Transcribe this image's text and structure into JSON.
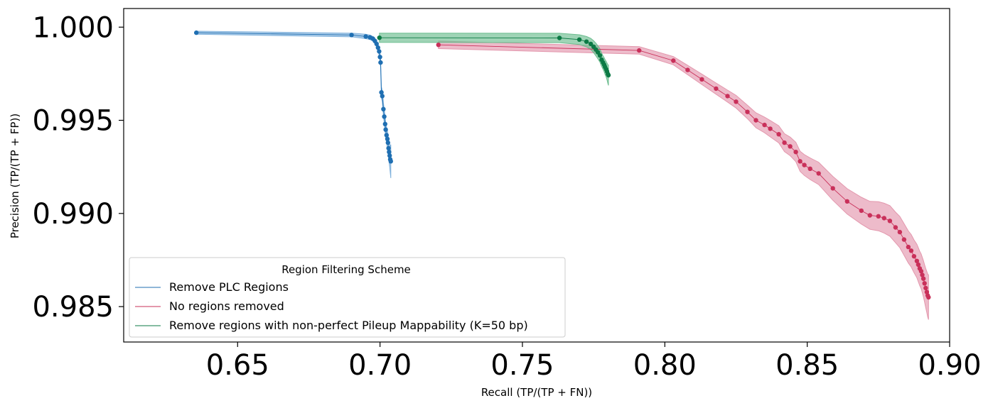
{
  "chart_data": {
    "type": "line",
    "title": "",
    "xlabel": "Recall (TP/(TP + FN))",
    "ylabel": "Precision (TP/(TP + FP))",
    "xlim": [
      0.61,
      0.9
    ],
    "ylim": [
      0.9831,
      1.001
    ],
    "xticks": [
      0.65,
      0.7,
      0.75,
      0.8,
      0.85,
      0.9
    ],
    "xtick_labels": [
      "0.65",
      "0.70",
      "0.75",
      "0.80",
      "0.85",
      "0.90"
    ],
    "yticks": [
      0.985,
      0.99,
      0.995,
      1.0
    ],
    "ytick_labels": [
      "0.985",
      "0.990",
      "0.995",
      "1.000"
    ],
    "grid": false,
    "legend": {
      "title": "Region Filtering Scheme",
      "placement": "lower-left"
    },
    "series": [
      {
        "name": "Remove PLC Regions",
        "color": "#1f6fb2",
        "band_color": "#7fb1dc",
        "points": [
          [
            0.6355,
            0.9997
          ],
          [
            0.69,
            0.99958
          ],
          [
            0.695,
            0.9995
          ],
          [
            0.6965,
            0.99945
          ],
          [
            0.6975,
            0.99938
          ],
          [
            0.6982,
            0.99926
          ],
          [
            0.6988,
            0.9991
          ],
          [
            0.6993,
            0.9989
          ],
          [
            0.6997,
            0.9987
          ],
          [
            0.7,
            0.9984
          ],
          [
            0.7002,
            0.9981
          ],
          [
            0.7005,
            0.9965
          ],
          [
            0.7008,
            0.9963
          ],
          [
            0.7012,
            0.9956
          ],
          [
            0.7015,
            0.9952
          ],
          [
            0.7018,
            0.9948
          ],
          [
            0.702,
            0.9945
          ],
          [
            0.7023,
            0.9942
          ],
          [
            0.7026,
            0.994
          ],
          [
            0.7028,
            0.9938
          ],
          [
            0.703,
            0.9935
          ],
          [
            0.7032,
            0.9933
          ],
          [
            0.7034,
            0.9931
          ],
          [
            0.7036,
            0.9929
          ],
          [
            0.7038,
            0.9928
          ]
        ],
        "band": [
          8e-05,
          0.0001,
          0.00012,
          0.00012,
          0.00012,
          0.00014,
          0.00016,
          0.00018,
          0.0002,
          0.00022,
          0.00022,
          0.0003,
          0.0003,
          0.00034,
          0.00036,
          0.0004,
          0.0004,
          0.00042,
          0.00044,
          0.00046,
          0.0005,
          0.00055,
          0.0006,
          0.0007,
          0.0009
        ]
      },
      {
        "name": "No regions removed",
        "color": "#c9305a",
        "band_color": "#e397ad",
        "points": [
          [
            0.7205,
            0.99905
          ],
          [
            0.791,
            0.99875
          ],
          [
            0.803,
            0.9982
          ],
          [
            0.808,
            0.9977
          ],
          [
            0.813,
            0.9972
          ],
          [
            0.818,
            0.9967
          ],
          [
            0.822,
            0.9963
          ],
          [
            0.825,
            0.996
          ],
          [
            0.829,
            0.99545
          ],
          [
            0.832,
            0.995
          ],
          [
            0.835,
            0.99475
          ],
          [
            0.837,
            0.99455
          ],
          [
            0.84,
            0.99425
          ],
          [
            0.842,
            0.9938
          ],
          [
            0.844,
            0.9936
          ],
          [
            0.846,
            0.9933
          ],
          [
            0.8475,
            0.9928
          ],
          [
            0.849,
            0.9926
          ],
          [
            0.851,
            0.9924
          ],
          [
            0.854,
            0.99215
          ],
          [
            0.859,
            0.99135
          ],
          [
            0.864,
            0.99065
          ],
          [
            0.869,
            0.99015
          ],
          [
            0.872,
            0.9899
          ],
          [
            0.875,
            0.98985
          ],
          [
            0.877,
            0.98975
          ],
          [
            0.879,
            0.9896
          ],
          [
            0.881,
            0.98925
          ],
          [
            0.8825,
            0.989
          ],
          [
            0.884,
            0.9886
          ],
          [
            0.8855,
            0.9882
          ],
          [
            0.8865,
            0.988
          ],
          [
            0.8875,
            0.9877
          ],
          [
            0.8885,
            0.98745
          ],
          [
            0.889,
            0.98725
          ],
          [
            0.8895,
            0.98705
          ],
          [
            0.89,
            0.9869
          ],
          [
            0.8904,
            0.9867
          ],
          [
            0.8908,
            0.9865
          ],
          [
            0.8912,
            0.98625
          ],
          [
            0.8916,
            0.986
          ],
          [
            0.892,
            0.98578
          ],
          [
            0.8923,
            0.9856
          ],
          [
            0.8926,
            0.9855
          ]
        ],
        "band": [
          0.0002,
          0.0002,
          0.00022,
          0.00025,
          0.00028,
          0.0003,
          0.00032,
          0.00034,
          0.00036,
          0.0004,
          0.00042,
          0.00044,
          0.00046,
          0.00048,
          0.0005,
          0.00052,
          0.00054,
          0.00056,
          0.00058,
          0.0006,
          0.00064,
          0.00068,
          0.00072,
          0.00075,
          0.00078,
          0.0008,
          0.00082,
          0.00082,
          0.00084,
          0.00085,
          0.00086,
          0.00087,
          0.00088,
          0.0009,
          0.00091,
          0.00092,
          0.00093,
          0.00095,
          0.00097,
          0.001,
          0.00105,
          0.0011,
          0.00115,
          0.0012
        ]
      },
      {
        "name": "Remove regions with non-perfect Pileup Mappability (K=50 bp)",
        "color": "#0c7a45",
        "band_color": "#6cbd8f",
        "points": [
          [
            0.6998,
            0.99943
          ],
          [
            0.763,
            0.99942
          ],
          [
            0.77,
            0.99933
          ],
          [
            0.7725,
            0.99922
          ],
          [
            0.774,
            0.9991
          ],
          [
            0.775,
            0.99895
          ],
          [
            0.7758,
            0.9988
          ],
          [
            0.7765,
            0.99865
          ],
          [
            0.7772,
            0.99848
          ],
          [
            0.7778,
            0.99825
          ],
          [
            0.7783,
            0.9981
          ],
          [
            0.7787,
            0.99798
          ],
          [
            0.779,
            0.99786
          ],
          [
            0.7794,
            0.99774
          ],
          [
            0.7797,
            0.99762
          ],
          [
            0.78,
            0.99748
          ],
          [
            0.7802,
            0.99742
          ]
        ],
        "band": [
          0.00025,
          0.00025,
          0.00026,
          0.00028,
          0.0003,
          0.00032,
          0.00034,
          0.00035,
          0.00036,
          0.00036,
          0.00036,
          0.00038,
          0.0004,
          0.00042,
          0.00045,
          0.0005,
          0.00055
        ]
      }
    ]
  }
}
